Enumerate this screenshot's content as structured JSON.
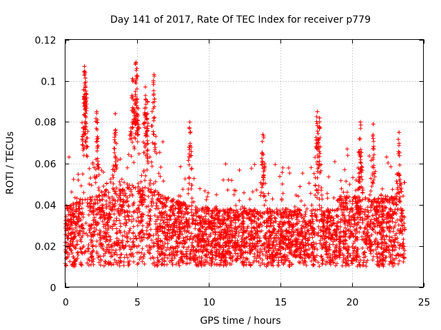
{
  "chart_data": {
    "type": "scatter",
    "title": "Day 141 of 2017, Rate Of TEC Index for receiver p779",
    "xlabel": "GPS time / hours",
    "ylabel": "ROTI / TECUs",
    "xlim": [
      0,
      25
    ],
    "ylim": [
      0,
      0.12
    ],
    "xticks": [
      0,
      5,
      10,
      15,
      20,
      25
    ],
    "yticks": [
      0,
      0.02,
      0.04,
      0.06,
      0.08,
      0.1,
      0.12
    ],
    "xtick_labels": [
      "0",
      "5",
      "10",
      "15",
      "20",
      "25"
    ],
    "ytick_labels": [
      "0",
      "0.02",
      "0.04",
      "0.06",
      "0.08",
      "0.1",
      "0.12"
    ],
    "grid": true,
    "marker": "plus",
    "series": [
      {
        "name": "ROTI",
        "color": "#ff0000",
        "x_range": [
          0,
          23.7
        ],
        "typical_band": [
          0.008,
          0.05
        ],
        "peaks": [
          {
            "x": 1.35,
            "y": 0.107
          },
          {
            "x": 1.4,
            "y": 0.104
          },
          {
            "x": 1.45,
            "y": 0.095
          },
          {
            "x": 2.2,
            "y": 0.085
          },
          {
            "x": 3.5,
            "y": 0.084
          },
          {
            "x": 4.7,
            "y": 0.101
          },
          {
            "x": 4.95,
            "y": 0.109
          },
          {
            "x": 5.0,
            "y": 0.106
          },
          {
            "x": 5.6,
            "y": 0.097
          },
          {
            "x": 5.75,
            "y": 0.09
          },
          {
            "x": 6.2,
            "y": 0.103
          },
          {
            "x": 8.7,
            "y": 0.08
          },
          {
            "x": 13.8,
            "y": 0.074
          },
          {
            "x": 17.6,
            "y": 0.085
          },
          {
            "x": 17.75,
            "y": 0.082
          },
          {
            "x": 20.6,
            "y": 0.08
          },
          {
            "x": 21.5,
            "y": 0.079
          },
          {
            "x": 23.3,
            "y": 0.075
          }
        ]
      }
    ]
  }
}
